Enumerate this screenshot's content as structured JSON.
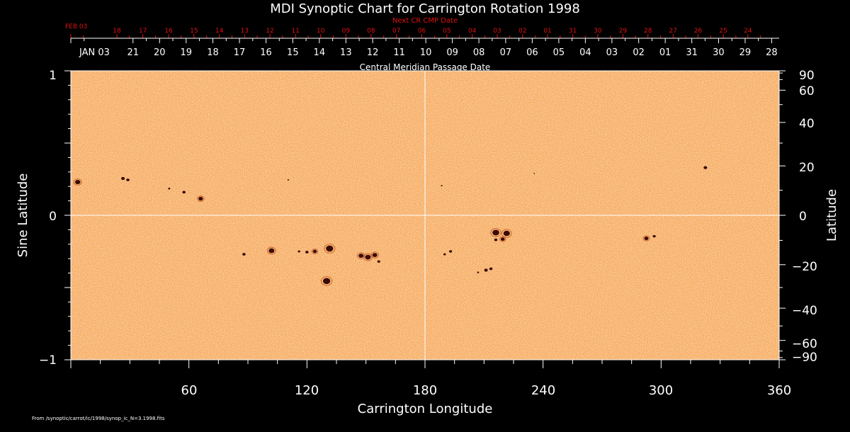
{
  "chart_data": {
    "type": "heatmap",
    "title": "MDI Synoptic Chart for Carrington Rotation 1998",
    "xlabel": "Carrington Longitude",
    "ylabel_left": "Sine Latitude",
    "ylabel_right": "Latitude",
    "top_axis_label": "Central Meridian Passage Date",
    "top_red_label": "Next CR CMP Date",
    "xlim": [
      0,
      360
    ],
    "ylim": [
      -1,
      1
    ],
    "x_ticks": [
      "60",
      "120",
      "180",
      "240",
      "300",
      "360"
    ],
    "y_ticks_left": [
      "1",
      "0",
      "−1"
    ],
    "y_ticks_right": [
      "90",
      "60",
      "40",
      "20",
      "0",
      "−20",
      "−40",
      "−60",
      "−90"
    ],
    "white_dates": [
      {
        "label": "JAN 03",
        "lon": 0
      },
      {
        "label": "21",
        "lon": 31.6
      },
      {
        "label": "20",
        "lon": 45.1
      },
      {
        "label": "19",
        "lon": 58.6
      },
      {
        "label": "18",
        "lon": 72.2
      },
      {
        "label": "17",
        "lon": 85.7
      },
      {
        "label": "16",
        "lon": 99.2
      },
      {
        "label": "15",
        "lon": 112.8
      },
      {
        "label": "14",
        "lon": 126.3
      },
      {
        "label": "13",
        "lon": 139.8
      },
      {
        "label": "12",
        "lon": 153.4
      },
      {
        "label": "11",
        "lon": 166.9
      },
      {
        "label": "10",
        "lon": 180.4
      },
      {
        "label": "09",
        "lon": 193.9
      },
      {
        "label": "08",
        "lon": 207.4
      },
      {
        "label": "07",
        "lon": 221.0
      },
      {
        "label": "06",
        "lon": 234.5
      },
      {
        "label": "05",
        "lon": 248.0
      },
      {
        "label": "04",
        "lon": 261.5
      },
      {
        "label": "03",
        "lon": 275.0
      },
      {
        "label": "02",
        "lon": 288.6
      },
      {
        "label": "01",
        "lon": 302.1
      },
      {
        "label": "31",
        "lon": 315.6
      },
      {
        "label": "30",
        "lon": 329.2
      },
      {
        "label": "29",
        "lon": 342.7
      },
      {
        "label": "28",
        "lon": 356.2
      }
    ],
    "red_dates": [
      {
        "label": "FEB 03",
        "lon": 0
      },
      {
        "label": "18",
        "lon": 23.4
      },
      {
        "label": "17",
        "lon": 36.6
      },
      {
        "label": "16",
        "lon": 49.7
      },
      {
        "label": "15",
        "lon": 62.6
      },
      {
        "label": "14",
        "lon": 75.5
      },
      {
        "label": "13",
        "lon": 88.3
      },
      {
        "label": "12",
        "lon": 101.2
      },
      {
        "label": "11",
        "lon": 114.2
      },
      {
        "label": "10",
        "lon": 127.0
      },
      {
        "label": "09",
        "lon": 139.8
      },
      {
        "label": "08",
        "lon": 152.6
      },
      {
        "label": "07",
        "lon": 165.5
      },
      {
        "label": "06",
        "lon": 178.4
      },
      {
        "label": "05",
        "lon": 191.1
      },
      {
        "label": "04",
        "lon": 204.0
      },
      {
        "label": "03",
        "lon": 216.7
      },
      {
        "label": "02",
        "lon": 229.6
      },
      {
        "label": "01",
        "lon": 242.3
      },
      {
        "label": "31",
        "lon": 255.1
      },
      {
        "label": "30",
        "lon": 267.8
      },
      {
        "label": "29",
        "lon": 280.6
      },
      {
        "label": "28",
        "lon": 293.3
      },
      {
        "label": "27",
        "lon": 306.1
      },
      {
        "label": "26",
        "lon": 318.8
      },
      {
        "label": "25",
        "lon": 331.6
      },
      {
        "label": "24",
        "lon": 344.1
      }
    ],
    "features": [
      {
        "lon": 3.5,
        "sinlat": 0.23,
        "size": 3.2
      },
      {
        "lon": 26.5,
        "sinlat": 0.255,
        "size": 2.2
      },
      {
        "lon": 29,
        "sinlat": 0.245,
        "size": 2
      },
      {
        "lon": 50,
        "sinlat": 0.185,
        "size": 1.3
      },
      {
        "lon": 57.5,
        "sinlat": 0.16,
        "size": 2
      },
      {
        "lon": 66,
        "sinlat": 0.115,
        "size": 2.8
      },
      {
        "lon": 110.5,
        "sinlat": 0.245,
        "size": 1
      },
      {
        "lon": 88,
        "sinlat": -0.27,
        "size": 2
      },
      {
        "lon": 102,
        "sinlat": -0.245,
        "size": 3.5
      },
      {
        "lon": 116,
        "sinlat": -0.25,
        "size": 1.5
      },
      {
        "lon": 120,
        "sinlat": -0.255,
        "size": 2
      },
      {
        "lon": 124,
        "sinlat": -0.25,
        "size": 2.5
      },
      {
        "lon": 131.5,
        "sinlat": -0.23,
        "size": 4.5
      },
      {
        "lon": 130,
        "sinlat": -0.455,
        "size": 4.5
      },
      {
        "lon": 147.5,
        "sinlat": -0.28,
        "size": 3
      },
      {
        "lon": 151,
        "sinlat": -0.29,
        "size": 3.5
      },
      {
        "lon": 154.5,
        "sinlat": -0.275,
        "size": 3
      },
      {
        "lon": 156.5,
        "sinlat": -0.32,
        "size": 1.8
      },
      {
        "lon": 188.5,
        "sinlat": 0.205,
        "size": 1
      },
      {
        "lon": 190,
        "sinlat": -0.27,
        "size": 1.5
      },
      {
        "lon": 193,
        "sinlat": -0.25,
        "size": 1.8
      },
      {
        "lon": 216,
        "sinlat": -0.12,
        "size": 4.2
      },
      {
        "lon": 221.5,
        "sinlat": -0.125,
        "size": 4
      },
      {
        "lon": 219.5,
        "sinlat": -0.165,
        "size": 2.5
      },
      {
        "lon": 216,
        "sinlat": -0.17,
        "size": 2
      },
      {
        "lon": 211,
        "sinlat": -0.38,
        "size": 2.2
      },
      {
        "lon": 213.5,
        "sinlat": -0.37,
        "size": 2
      },
      {
        "lon": 207,
        "sinlat": -0.395,
        "size": 1.2
      },
      {
        "lon": 292.5,
        "sinlat": -0.16,
        "size": 2.6
      },
      {
        "lon": 296.5,
        "sinlat": -0.145,
        "size": 1.8
      },
      {
        "lon": 322.5,
        "sinlat": 0.33,
        "size": 2.2
      },
      {
        "lon": 235.5,
        "sinlat": 0.29,
        "size": 0.8
      }
    ],
    "grid": false
  },
  "colors": {
    "background": "#000000",
    "map_fill": "#f5a24a",
    "spot": "#3a0a00",
    "red_text": "#e01010",
    "axis": "#ffffff"
  },
  "footer_text": "From /synoptic/carrot/ic/1998/synop_ic_N=3.1998.fits"
}
